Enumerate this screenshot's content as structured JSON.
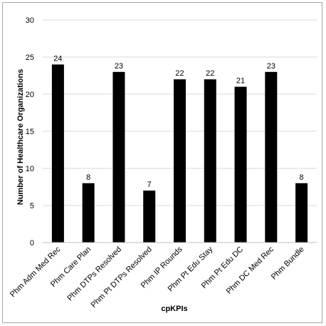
{
  "chart_data": {
    "type": "bar",
    "categories": [
      "Phm Adm Med Rec",
      "Phm Care Plan",
      "Phm DTPs Resolved",
      "Phm Pt DTPs Resolved",
      "Phm IP Rounds",
      "Phm Pt Edu Stay",
      "Phm Pt Edu DC",
      "Phm DC Med Rec",
      "Phm Bundle"
    ],
    "values": [
      24,
      8,
      23,
      7,
      22,
      22,
      21,
      23,
      8
    ],
    "xlabel": "cpKPIs",
    "ylabel": "Number of Healthcare Organizations",
    "ylim": [
      0,
      30
    ],
    "yticks": [
      0,
      5,
      10,
      15,
      20,
      25,
      30
    ],
    "grid": true,
    "bar_color": "#000000",
    "grid_color": "#d9d9d9",
    "data_labels": true
  }
}
